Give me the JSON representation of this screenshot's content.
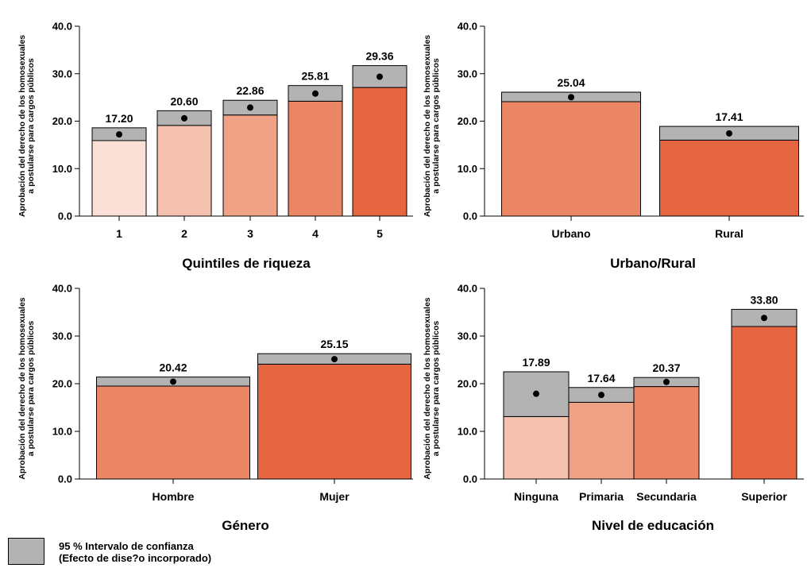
{
  "chart_data": [
    {
      "type": "bar",
      "title": "Quintiles de riqueza",
      "ylabel_lines": [
        "Aprobación del derecho de los homosexuales",
        "a postularse para cargos públicos"
      ],
      "ylim": [
        0,
        40
      ],
      "yticks": [
        "0.0",
        "10.0",
        "20.0",
        "30.0",
        "40.0"
      ],
      "categories": [
        "1",
        "2",
        "3",
        "4",
        "5"
      ],
      "values": [
        17.2,
        20.6,
        22.86,
        25.81,
        29.36
      ],
      "value_labels": [
        "17.20",
        "20.60",
        "22.86",
        "25.81",
        "29.36"
      ],
      "ci_low": [
        15.9,
        19.1,
        21.3,
        24.2,
        27.1
      ],
      "ci_high": [
        18.6,
        22.2,
        24.4,
        27.5,
        31.7
      ],
      "colors": [
        "#fae0d6",
        "#f5c2b0",
        "#f0a287",
        "#eb8665",
        "#e56640"
      ]
    },
    {
      "type": "bar",
      "title": "Urbano/Rural",
      "ylabel_lines": [
        "Aprobación del derecho de los homosexuales",
        "a postularse para cargos públicos"
      ],
      "ylim": [
        0,
        40
      ],
      "yticks": [
        "0.0",
        "10.0",
        "20.0",
        "30.0",
        "40.0"
      ],
      "categories": [
        "Urbano",
        "Rural"
      ],
      "values": [
        25.04,
        17.41
      ],
      "value_labels": [
        "25.04",
        "17.41"
      ],
      "ci_low": [
        24.1,
        16.0
      ],
      "ci_high": [
        26.1,
        18.9
      ],
      "colors": [
        "#eb8665",
        "#e56640"
      ]
    },
    {
      "type": "bar",
      "title": "Género",
      "ylabel_lines": [
        "Aprobación del derecho de los homosexuales",
        "a postularse para cargos públicos"
      ],
      "ylim": [
        0,
        40
      ],
      "yticks": [
        "0.0",
        "10.0",
        "20.0",
        "30.0",
        "40.0"
      ],
      "categories": [
        "Hombre",
        "Mujer"
      ],
      "values": [
        20.42,
        25.15
      ],
      "value_labels": [
        "20.42",
        "25.15"
      ],
      "ci_low": [
        19.5,
        24.1
      ],
      "ci_high": [
        21.4,
        26.3
      ],
      "colors": [
        "#eb8665",
        "#e56640"
      ]
    },
    {
      "type": "bar",
      "title": "Nivel de educación",
      "ylabel_lines": [
        "Aprobación del derecho de los homosexuales",
        "a postularse para cargos públicos"
      ],
      "ylim": [
        0,
        40
      ],
      "yticks": [
        "0.0",
        "10.0",
        "20.0",
        "30.0",
        "40.0"
      ],
      "categories": [
        "Ninguna",
        "Primaria",
        "Secundaria",
        "Superior"
      ],
      "values": [
        17.89,
        17.64,
        20.37,
        33.8
      ],
      "value_labels": [
        "17.89",
        "17.64",
        "20.37",
        "33.80"
      ],
      "ci_low": [
        13.1,
        16.1,
        19.4,
        32.0
      ],
      "ci_high": [
        22.5,
        19.2,
        21.3,
        35.6
      ],
      "colors": [
        "#f5c2b0",
        "#f0a287",
        "#eb8665",
        "#e56640"
      ]
    }
  ],
  "legend": {
    "line1": "95 % Intervalo de confianza",
    "line2": "(Efecto de dise?o incorporado)",
    "swatch_color": "#b3b3b3"
  }
}
